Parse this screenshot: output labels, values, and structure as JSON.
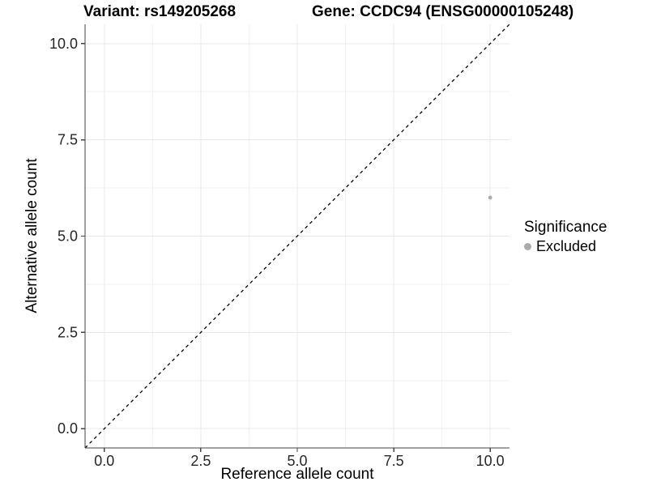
{
  "titles": {
    "left": "Variant: rs149205268",
    "right": "Gene: CCDC94 (ENSG00000105248)"
  },
  "chart_data": {
    "type": "scatter",
    "xlabel": "Reference allele count",
    "ylabel": "Alternative allele count",
    "xlim": [
      -0.5,
      10.5
    ],
    "ylim": [
      -0.5,
      10.5
    ],
    "x_major_ticks": [
      0.0,
      2.5,
      5.0,
      7.5,
      10.0
    ],
    "x_minor_ticks": [
      1.25,
      3.75,
      6.25,
      8.75
    ],
    "y_major_ticks": [
      0.0,
      2.5,
      5.0,
      7.5,
      10.0
    ],
    "y_minor_ticks": [
      1.25,
      3.75,
      6.25,
      8.75
    ],
    "points": [
      {
        "x": 10,
        "y": 6,
        "significance": "Excluded"
      }
    ],
    "identity_line": {
      "style": "dashed",
      "from": [
        -0.5,
        -0.5
      ],
      "to": [
        10.5,
        10.5
      ],
      "color": "#000000"
    },
    "legend": {
      "title": "Significance",
      "position": "right",
      "items": [
        {
          "label": "Excluded",
          "color": "#ababab"
        }
      ]
    },
    "style": {
      "grid_major_color": "#e8e8e8",
      "grid_minor_color": "#f2f2f2",
      "axis_line_color": "#444444",
      "tick_label_color": "#262626",
      "point_color": "#ababab",
      "point_radius": 2.4
    }
  }
}
